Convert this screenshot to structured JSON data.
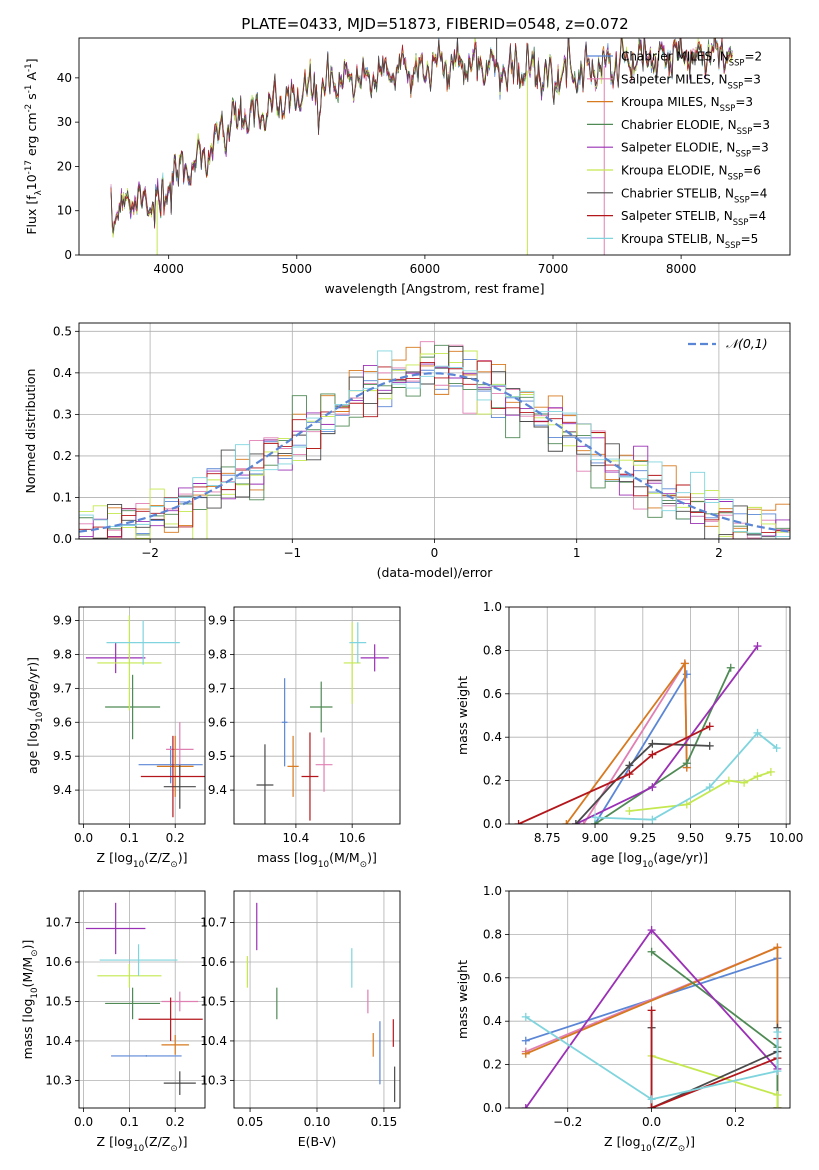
{
  "figure_title": "PLATE=0433, MJD=51873, FIBERID=0548, z=0.072",
  "series_names": [
    "Chabrier MILES, N$_{SSP}$=2",
    "Salpeter MILES, N$_{SSP}$=3",
    "Kroupa MILES, N$_{SSP}$=3",
    "Chabrier ELODIE, N$_{SSP}$=3",
    "Salpeter ELODIE, N$_{SSP}$=3",
    "Kroupa ELODIE, N$_{SSP}$=6",
    "Chabrier STELIB, N$_{SSP}$=4",
    "Salpeter STELIB, N$_{SSP}$=4",
    "Kroupa STELIB, N$_{SSP}$=5"
  ],
  "series_colors": [
    "#5b86d6",
    "#e07fb2",
    "#d7791f",
    "#4f8a55",
    "#9a30b5",
    "#c4e84f",
    "#4a4a4a",
    "#b3171c",
    "#7fd4dd"
  ],
  "chart_data": [
    {
      "id": "spectrum",
      "type": "line",
      "title": "PLATE=0433, MJD=51873, FIBERID=0548, z=0.072",
      "xlabel": "wavelength [Angstrom, rest frame]",
      "ylabel": "Flux [f$_\\lambda$10$^{-17}$ erg cm$^{-2}$ s$^{-1}$ A$^{-1}$]",
      "xlim": [
        3300,
        8850
      ],
      "ylim": [
        0,
        49
      ],
      "xticks": [
        4000,
        5000,
        6000,
        7000,
        8000
      ],
      "yticks": [
        0,
        10,
        20,
        30,
        40
      ],
      "grid": false,
      "legend": "top-right",
      "x_range": [
        3550,
        8400
      ],
      "continuum": {
        "x": [
          3550,
          3700,
          3900,
          4100,
          4300,
          4500,
          4800,
          5000,
          5200,
          5500,
          5800,
          6100,
          6400,
          6700,
          7000,
          7300,
          7600,
          7900,
          8200,
          8400
        ],
        "y": [
          9,
          13,
          12,
          19,
          23,
          30,
          33,
          36,
          38,
          40,
          42,
          43,
          43,
          42,
          41,
          42,
          44,
          45,
          46,
          45
        ]
      },
      "artifacts": [
        {
          "x": 3910,
          "y": 0,
          "series": "Kroupa ELODIE, N$_{SSP}$=6"
        },
        {
          "x": 6800,
          "y": 0,
          "series": "Kroupa ELODIE, N$_{SSP}$=6"
        },
        {
          "x": 7400,
          "y": 0,
          "series": "Salpeter MILES, N$_{SSP}$=3"
        },
        {
          "x": 6560,
          "y": 49,
          "series": "Chabrier STELIB, N$_{SSP}$=4"
        }
      ]
    },
    {
      "id": "residuals",
      "type": "histogram",
      "xlabel": "(data-model)/error",
      "ylabel": "Normed distribution",
      "xlim": [
        -2.5,
        2.5
      ],
      "ylim": [
        0,
        0.52
      ],
      "xticks": [
        -2,
        -1,
        0,
        1,
        2
      ],
      "yticks": [
        0.0,
        0.1,
        0.2,
        0.3,
        0.4,
        0.5
      ],
      "grid": true,
      "legend": "top-right",
      "bin_width": 0.1,
      "reference": {
        "name": "$\\mathcal{N}(0,1)$",
        "mean": 0,
        "sigma": 1,
        "color": "#5b86d6",
        "style": "dashed"
      }
    },
    {
      "id": "age_vs_Z",
      "type": "errorbar",
      "xlabel": "Z [log$_{10}$(Z/Z$_\\odot$)]",
      "ylabel": "age  [log$_{10}$(age/yr)]",
      "xlim": [
        -0.01,
        0.265
      ],
      "ylim": [
        9.3,
        9.94
      ],
      "xticks": [
        0.0,
        0.1,
        0.2
      ],
      "yticks": [
        9.4,
        9.5,
        9.6,
        9.7,
        9.8,
        9.9
      ],
      "grid": true,
      "points": [
        {
          "series": "Chabrier MILES, N$_{SSP}$=2",
          "x": 0.19,
          "xerr": 0.07,
          "y": 9.475,
          "yerr": 0.055
        },
        {
          "series": "Salpeter MILES, N$_{SSP}$=3",
          "x": 0.21,
          "xerr": 0.03,
          "y": 9.52,
          "yerr": 0.08
        },
        {
          "series": "Kroupa MILES, N$_{SSP}$=3",
          "x": 0.2,
          "xerr": 0.04,
          "y": 9.47,
          "yerr": 0.09
        },
        {
          "series": "Chabrier ELODIE, N$_{SSP}$=3",
          "x": 0.107,
          "xerr": 0.06,
          "y": 9.645,
          "yerr": 0.095
        },
        {
          "series": "Salpeter ELODIE, N$_{SSP}$=3",
          "x": 0.07,
          "xerr": 0.065,
          "y": 9.79,
          "yerr": 0.045
        },
        {
          "series": "Kroupa ELODIE, N$_{SSP}$=6",
          "x": 0.1,
          "xerr": 0.07,
          "y": 9.775,
          "yerr": 0.14
        },
        {
          "series": "Chabrier STELIB, N$_{SSP}$=4",
          "x": 0.21,
          "xerr": 0.035,
          "y": 9.41,
          "yerr": 0.065
        },
        {
          "series": "Salpeter STELIB, N$_{SSP}$=4",
          "x": 0.195,
          "xerr": 0.07,
          "y": 9.44,
          "yerr": 0.12
        },
        {
          "series": "Kroupa STELIB, N$_{SSP}$=5",
          "x": 0.13,
          "xerr": 0.08,
          "y": 9.835,
          "yerr": 0.065
        }
      ]
    },
    {
      "id": "age_vs_mass",
      "type": "errorbar",
      "xlabel": "mass [log$_{10}$(M/M$_\\odot$)]",
      "ylabel": "",
      "xlim": [
        10.18,
        10.77
      ],
      "ylim": [
        9.3,
        9.94
      ],
      "xticks": [
        10.4,
        10.6
      ],
      "yticks": [
        9.4,
        9.5,
        9.6,
        9.7,
        9.8,
        9.9
      ],
      "grid": true,
      "points": [
        {
          "series": "Chabrier MILES, N$_{SSP}$=2",
          "x": 10.36,
          "xerr": 0.01,
          "y": 9.6,
          "yerr": 0.13
        },
        {
          "series": "Salpeter MILES, N$_{SSP}$=3",
          "x": 10.5,
          "xerr": 0.03,
          "y": 9.475,
          "yerr": 0.08
        },
        {
          "series": "Kroupa MILES, N$_{SSP}$=3",
          "x": 10.39,
          "xerr": 0.02,
          "y": 9.47,
          "yerr": 0.09
        },
        {
          "series": "Chabrier ELODIE, N$_{SSP}$=3",
          "x": 10.49,
          "xerr": 0.04,
          "y": 9.645,
          "yerr": 0.075
        },
        {
          "series": "Salpeter ELODIE, N$_{SSP}$=3",
          "x": 10.68,
          "xerr": 0.05,
          "y": 9.79,
          "yerr": 0.04
        },
        {
          "series": "Kroupa ELODIE, N$_{SSP}$=6",
          "x": 10.6,
          "xerr": 0.03,
          "y": 9.775,
          "yerr": 0.12
        },
        {
          "series": "Chabrier STELIB, N$_{SSP}$=4",
          "x": 10.29,
          "xerr": 0.03,
          "y": 9.415,
          "yerr": 0.12
        },
        {
          "series": "Salpeter STELIB, N$_{SSP}$=4",
          "x": 10.45,
          "xerr": 0.03,
          "y": 9.44,
          "yerr": 0.13
        },
        {
          "series": "Kroupa STELIB, N$_{SSP}$=5",
          "x": 10.62,
          "xerr": 0.03,
          "y": 9.835,
          "yerr": 0.06
        }
      ]
    },
    {
      "id": "weight_vs_age",
      "type": "line",
      "xlabel": "age  [log$_{10}$(age/yr)]",
      "ylabel": "mass weight",
      "xlim": [
        8.55,
        10.02
      ],
      "ylim": [
        0,
        1
      ],
      "xticks": [
        8.75,
        9.0,
        9.25,
        9.5,
        9.75,
        10.0
      ],
      "yticks": [
        0.0,
        0.2,
        0.4,
        0.6,
        0.8,
        1.0
      ],
      "grid": true,
      "series": [
        {
          "name": "Chabrier MILES, N$_{SSP}$=2",
          "x": [
            9.0,
            9.48
          ],
          "y": [
            0.0,
            0.69
          ]
        },
        {
          "name": "Salpeter MILES, N$_{SSP}$=3",
          "x": [
            8.94,
            9.47,
            9.48
          ],
          "y": [
            0.0,
            0.74,
            0.26
          ]
        },
        {
          "name": "Kroupa MILES, N$_{SSP}$=3",
          "x": [
            8.85,
            9.47,
            9.48
          ],
          "y": [
            0.0,
            0.74,
            0.26
          ]
        },
        {
          "name": "Chabrier ELODIE, N$_{SSP}$=3",
          "x": [
            9.0,
            9.48,
            9.71
          ],
          "y": [
            0.0,
            0.28,
            0.72
          ]
        },
        {
          "name": "Salpeter ELODIE, N$_{SSP}$=3",
          "x": [
            8.9,
            9.3,
            9.85
          ],
          "y": [
            0.0,
            0.17,
            0.82
          ]
        },
        {
          "name": "Kroupa ELODIE, N$_{SSP}$=6",
          "x": [
            9.18,
            9.48,
            9.7,
            9.78,
            9.85,
            9.92
          ],
          "y": [
            0.06,
            0.09,
            0.2,
            0.19,
            0.22,
            0.24
          ]
        },
        {
          "name": "Chabrier STELIB, N$_{SSP}$=4",
          "x": [
            8.9,
            9.18,
            9.3,
            9.6
          ],
          "y": [
            0.0,
            0.27,
            0.37,
            0.36
          ]
        },
        {
          "name": "Salpeter STELIB, N$_{SSP}$=4",
          "x": [
            8.6,
            9.18,
            9.3,
            9.6
          ],
          "y": [
            0.0,
            0.23,
            0.32,
            0.45
          ]
        },
        {
          "name": "Kroupa STELIB, N$_{SSP}$=5",
          "x": [
            9.0,
            9.3,
            9.6,
            9.85,
            9.95
          ],
          "y": [
            0.03,
            0.02,
            0.17,
            0.42,
            0.35
          ]
        }
      ]
    },
    {
      "id": "mass_vs_Z",
      "type": "errorbar",
      "xlabel": "Z [log$_{10}$(Z/Z$_\\odot$)]",
      "ylabel": "mass [log$_{10}$(M/M$_\\odot$)]",
      "xlim": [
        -0.01,
        0.265
      ],
      "ylim": [
        10.23,
        10.78
      ],
      "xticks": [
        0.0,
        0.1,
        0.2
      ],
      "yticks": [
        10.3,
        10.4,
        10.5,
        10.6,
        10.7
      ],
      "grid": true,
      "points": [
        {
          "series": "Chabrier MILES, N$_{SSP}$=2",
          "x": 0.137,
          "xerr": 0.077,
          "y": 10.362,
          "yerr": 0.002
        },
        {
          "series": "Salpeter MILES, N$_{SSP}$=3",
          "x": 0.21,
          "xerr": 0.04,
          "y": 10.5,
          "yerr": 0.025
        },
        {
          "series": "Kroupa MILES, N$_{SSP}$=3",
          "x": 0.2,
          "xerr": 0.03,
          "y": 10.39,
          "yerr": 0.025
        },
        {
          "series": "Chabrier ELODIE, N$_{SSP}$=3",
          "x": 0.107,
          "xerr": 0.06,
          "y": 10.495,
          "yerr": 0.04
        },
        {
          "series": "Salpeter ELODIE, N$_{SSP}$=3",
          "x": 0.07,
          "xerr": 0.065,
          "y": 10.685,
          "yerr": 0.065
        },
        {
          "series": "Kroupa ELODIE, N$_{SSP}$=6",
          "x": 0.1,
          "xerr": 0.07,
          "y": 10.565,
          "yerr": 0.03
        },
        {
          "series": "Chabrier STELIB, N$_{SSP}$=4",
          "x": 0.21,
          "xerr": 0.035,
          "y": 10.293,
          "yerr": 0.03
        },
        {
          "series": "Salpeter STELIB, N$_{SSP}$=4",
          "x": 0.19,
          "xerr": 0.07,
          "y": 10.455,
          "yerr": 0.055
        },
        {
          "series": "Kroupa STELIB, N$_{SSP}$=5",
          "x": 0.12,
          "xerr": 0.085,
          "y": 10.605,
          "yerr": 0.04
        }
      ]
    },
    {
      "id": "mass_vs_ebv",
      "type": "errorbar",
      "xlabel": "E(B-V)",
      "ylabel": "",
      "xlim": [
        0.038,
        0.162
      ],
      "ylim": [
        10.23,
        10.78
      ],
      "xticks": [
        0.05,
        0.1,
        0.15
      ],
      "yticks": [
        10.3,
        10.4,
        10.5,
        10.6,
        10.7
      ],
      "grid": true,
      "points": [
        {
          "series": "Chabrier MILES, N$_{SSP}$=2",
          "x": 0.147,
          "xerr": 0,
          "y": 10.37,
          "yerr": 0.08
        },
        {
          "series": "Salpeter MILES, N$_{SSP}$=3",
          "x": 0.138,
          "xerr": 0,
          "y": 10.5,
          "yerr": 0.03
        },
        {
          "series": "Kroupa MILES, N$_{SSP}$=3",
          "x": 0.142,
          "xerr": 0,
          "y": 10.39,
          "yerr": 0.03
        },
        {
          "series": "Chabrier ELODIE, N$_{SSP}$=3",
          "x": 0.07,
          "xerr": 0,
          "y": 10.495,
          "yerr": 0.04
        },
        {
          "series": "Salpeter ELODIE, N$_{SSP}$=3",
          "x": 0.055,
          "xerr": 0,
          "y": 10.69,
          "yerr": 0.06
        },
        {
          "series": "Kroupa ELODIE, N$_{SSP}$=6",
          "x": 0.048,
          "xerr": 0,
          "y": 10.575,
          "yerr": 0.04
        },
        {
          "series": "Chabrier STELIB, N$_{SSP}$=4",
          "x": 0.158,
          "xerr": 0,
          "y": 10.29,
          "yerr": 0.045
        },
        {
          "series": "Salpeter STELIB, N$_{SSP}$=4",
          "x": 0.157,
          "xerr": 0,
          "y": 10.42,
          "yerr": 0.035
        },
        {
          "series": "Kroupa STELIB, N$_{SSP}$=5",
          "x": 0.126,
          "xerr": 0,
          "y": 10.585,
          "yerr": 0.05
        }
      ]
    },
    {
      "id": "weight_vs_Z",
      "type": "line",
      "xlabel": "Z [log$_{10}$(Z/Z$_\\odot$)]",
      "ylabel": "mass weight",
      "xlim": [
        -0.34,
        0.33
      ],
      "ylim": [
        0,
        1
      ],
      "xticks": [
        -0.2,
        0.0,
        0.2
      ],
      "yticks": [
        0.0,
        0.2,
        0.4,
        0.6,
        0.8,
        1.0
      ],
      "grid": true,
      "series": [
        {
          "name": "Chabrier MILES, N$_{SSP}$=2",
          "x": [
            -0.3,
            0.3
          ],
          "y": [
            0.31,
            0.69
          ]
        },
        {
          "name": "Salpeter MILES, N$_{SSP}$=3",
          "x": [
            -0.3,
            0.3,
            0.3
          ],
          "y": [
            0.26,
            0.74,
            0.0
          ]
        },
        {
          "name": "Kroupa MILES, N$_{SSP}$=3",
          "x": [
            -0.3,
            0.3,
            0.3
          ],
          "y": [
            0.25,
            0.74,
            0.0
          ]
        },
        {
          "name": "Chabrier ELODIE, N$_{SSP}$=3",
          "x": [
            0.0,
            0.3,
            0.3
          ],
          "y": [
            0.72,
            0.28,
            0.0
          ]
        },
        {
          "name": "Salpeter ELODIE, N$_{SSP}$=3",
          "x": [
            -0.3,
            0.0,
            0.3
          ],
          "y": [
            0.0,
            0.82,
            0.18
          ]
        },
        {
          "name": "Kroupa ELODIE, N$_{SSP}$=6",
          "x": [
            0.0,
            0.3,
            0.3
          ],
          "y": [
            0.24,
            0.06,
            0.0
          ]
        },
        {
          "name": "Chabrier STELIB, N$_{SSP}$=4",
          "x": [
            0.0,
            0.0,
            0.3,
            0.3
          ],
          "y": [
            0.37,
            0.0,
            0.26,
            0.37
          ]
        },
        {
          "name": "Salpeter STELIB, N$_{SSP}$=4",
          "x": [
            0.0,
            0.0,
            0.3,
            0.3
          ],
          "y": [
            0.45,
            0.0,
            0.23,
            0.32
          ]
        },
        {
          "name": "Kroupa STELIB, N$_{SSP}$=5",
          "x": [
            -0.3,
            0.0,
            0.3,
            0.3
          ],
          "y": [
            0.42,
            0.04,
            0.17,
            0.35
          ]
        }
      ]
    }
  ]
}
